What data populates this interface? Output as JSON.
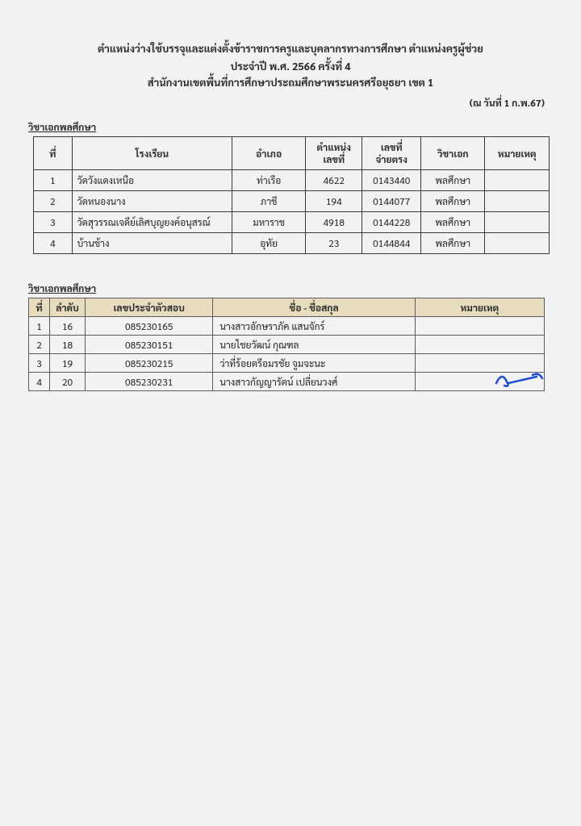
{
  "header": {
    "line1": "ตำแหน่งว่างใช้บรรจุและแต่งตั้งข้าราชการครูและบุคลากรทางการศึกษา ตำแหน่งครูผู้ช่วย",
    "line2": "ประจำปี พ.ศ. 2566  ครั้งที่ 4",
    "line3": "สำนักงานเขตพื้นที่การศึกษาประถมศึกษาพระนครศรีอยุธยา เขต 1",
    "date": "(ณ วันที่ 1 ก.พ.67)"
  },
  "section1": {
    "title": "วิชาเอกพลศึกษา",
    "headers": {
      "idx": "ที่",
      "school": "โรงเรียน",
      "district": "อำเภอ",
      "pos1": "ตำแหน่ง",
      "pos2": "เลขที่",
      "num1": "เลขที่",
      "num2": "จ่ายตรง",
      "subject": "วิชาเอก",
      "note": "หมายเหตุ"
    },
    "rows": [
      {
        "idx": "1",
        "school": "วัดวังแดงเหนือ",
        "district": "ท่าเรือ",
        "pos": "4622",
        "num": "0143440",
        "subj": "พลศึกษา",
        "note": ""
      },
      {
        "idx": "2",
        "school": "วัดหนองนาง",
        "district": "ภาชี",
        "pos": "194",
        "num": "0144077",
        "subj": "พลศึกษา",
        "note": ""
      },
      {
        "idx": "3",
        "school": "วัดสุวรรณเจดีย์เลิศบุญยงค์อนุสรณ์",
        "district": "มหาราช",
        "pos": "4918",
        "num": "0144228",
        "subj": "พลศึกษา",
        "note": ""
      },
      {
        "idx": "4",
        "school": "บ้านช้าง",
        "district": "อุทัย",
        "pos": "23",
        "num": "0144844",
        "subj": "พลศึกษา",
        "note": ""
      }
    ]
  },
  "section2": {
    "title": "วิชาเอกพลศึกษา",
    "headers": {
      "i": "ที่",
      "ord": "ลำดับ",
      "id": "เลขประจำตัวสอบ",
      "name": "ชื่อ - ชื่อสกุล",
      "note": "หมายเหตุ"
    },
    "rows": [
      {
        "i": "1",
        "ord": "16",
        "id": "085230165",
        "name": "นางสาวอักษราภัค   แสนจักร์",
        "note": ""
      },
      {
        "i": "2",
        "ord": "18",
        "id": "085230151",
        "name": "นายไชยวัฒน์  กุณฑล",
        "note": ""
      },
      {
        "i": "3",
        "ord": "19",
        "id": "085230215",
        "name": "ว่าที่ร้อยตรีอมรชัย   จูมจะนะ",
        "note": ""
      },
      {
        "i": "4",
        "ord": "20",
        "id": "085230231",
        "name": "นางสาวกัญญารัตน์  เปลี่ยนวงศ์",
        "note": ""
      }
    ]
  },
  "styling": {
    "page_bg": "#f2f2f4",
    "border_color_t1": "#383838",
    "border_color_t2": "#5a5a5a",
    "t2_header_bg": "#e8dcbf",
    "text_color": "#2a2a2a",
    "sig_color": "#1b4bd1"
  }
}
